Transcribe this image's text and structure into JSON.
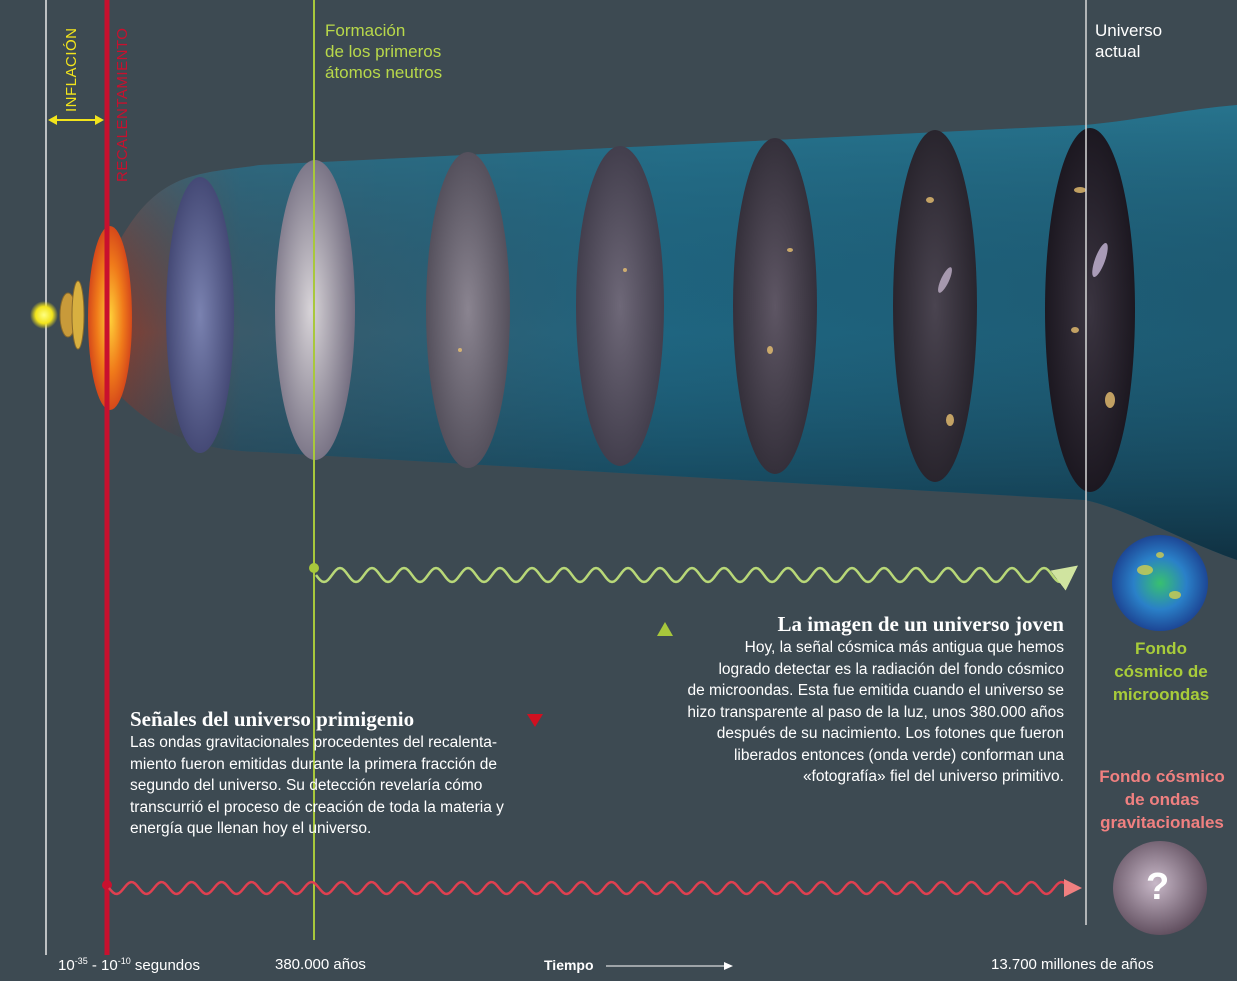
{
  "labels": {
    "inflacion": "INFLACIÓN",
    "recalentamiento": "RECALENTAMIENTO",
    "formacion": [
      "Formación",
      "de los primeros",
      "átomos neutros"
    ],
    "universo_actual": [
      "Universo",
      "actual"
    ]
  },
  "block_cmb": {
    "title": "La imagen de un universo joven",
    "lines": [
      "Hoy, la señal cósmica más antigua que hemos",
      "logrado detectar es la radiación del fondo cósmico",
      "de microondas. Esta fue emitida cuando el universo se",
      "hizo transparente al paso de la luz, unos 380.000 años",
      "después de su nacimiento. Los fotones que fueron",
      "liberados entonces (onda verde) conforman una",
      "«fotografía» fiel del universo primitivo."
    ]
  },
  "block_gw": {
    "title": "Señales del universo primigenio",
    "lines": [
      "Las ondas gravitacionales procedentes del recalenta-",
      "miento fueron emitidas durante la primera fracción de",
      "segundo del universo. Su detección revelaría cómo",
      "transcurrió el proceso de creación de toda la materia y",
      "energía que llenan hoy el universo."
    ]
  },
  "side": {
    "cmb": [
      "Fondo",
      "cósmico de",
      "microondas"
    ],
    "gw": [
      "Fondo cósmico",
      "de ondas",
      "gravitacionales"
    ],
    "question": "?"
  },
  "axis": {
    "t0_base1": "10",
    "t0_exp1": "-35",
    "t0_sep": " - ",
    "t0_base2": "10",
    "t0_exp2": "-10",
    "t0_unit": " segundos",
    "t1": "380.000 años",
    "tiempo": "Tiempo",
    "t2": "13.700 millones de años"
  },
  "colors": {
    "background": "#3d4a52",
    "red_line": "#c8102e",
    "green_line": "#a8c83c",
    "funnel": "#1f5f78",
    "yellow": "#f2e41c"
  }
}
